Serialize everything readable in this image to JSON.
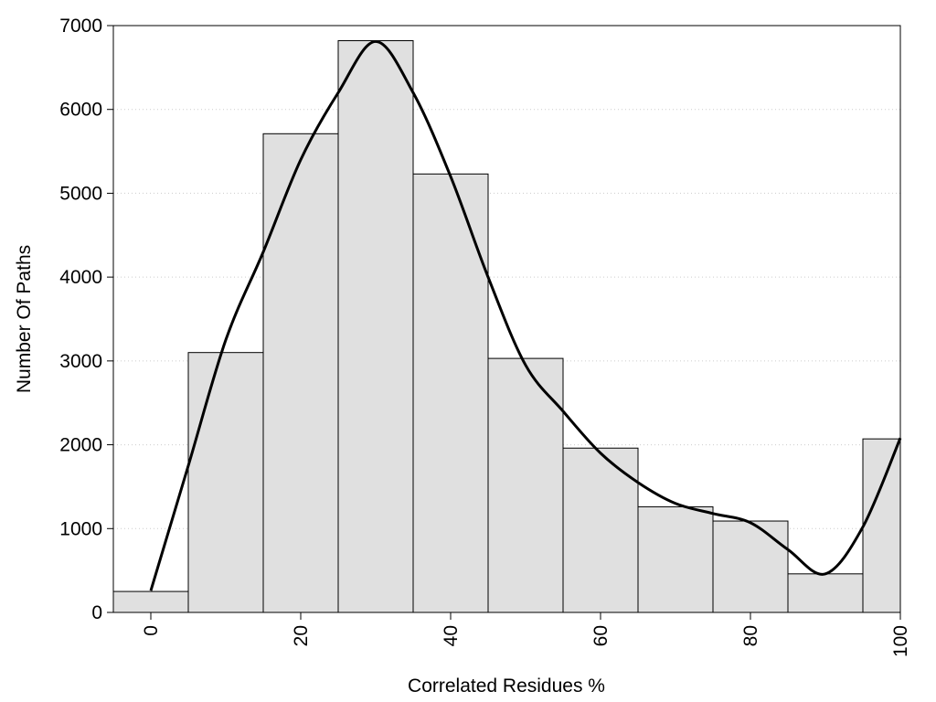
{
  "chart_data": {
    "type": "bar",
    "subtype": "histogram-with-density-curve",
    "title": "",
    "xlabel": "Correlated Residues %",
    "ylabel": "Number Of Paths",
    "xlim": [
      -5,
      100
    ],
    "ylim": [
      0,
      7000
    ],
    "x_ticks": [
      0,
      20,
      40,
      60,
      80,
      100
    ],
    "y_ticks": [
      0,
      1000,
      2000,
      3000,
      4000,
      5000,
      6000,
      7000
    ],
    "grid": "horizontal dotted",
    "bin_width": 10,
    "bins": [
      {
        "center": 0,
        "value": 250
      },
      {
        "center": 10,
        "value": 3100
      },
      {
        "center": 20,
        "value": 5710
      },
      {
        "center": 30,
        "value": 6820
      },
      {
        "center": 40,
        "value": 5230
      },
      {
        "center": 50,
        "value": 3030
      },
      {
        "center": 60,
        "value": 1960
      },
      {
        "center": 70,
        "value": 1260
      },
      {
        "center": 80,
        "value": 1090
      },
      {
        "center": 90,
        "value": 460
      },
      {
        "center": 100,
        "value": 2070
      }
    ],
    "curve": {
      "x": [
        0,
        5,
        10,
        15,
        20,
        25,
        30,
        35,
        40,
        45,
        50,
        55,
        60,
        65,
        70,
        75,
        80,
        85,
        90,
        95,
        100
      ],
      "y": [
        260,
        1750,
        3250,
        4300,
        5400,
        6200,
        6810,
        6200,
        5200,
        4000,
        2950,
        2400,
        1900,
        1550,
        1300,
        1180,
        1070,
        750,
        460,
        1020,
        2080
      ]
    },
    "colors": {
      "bar_fill": "#e0e0e0",
      "bar_stroke": "#000000",
      "curve": "#000000",
      "grid": "#cccccc"
    }
  }
}
